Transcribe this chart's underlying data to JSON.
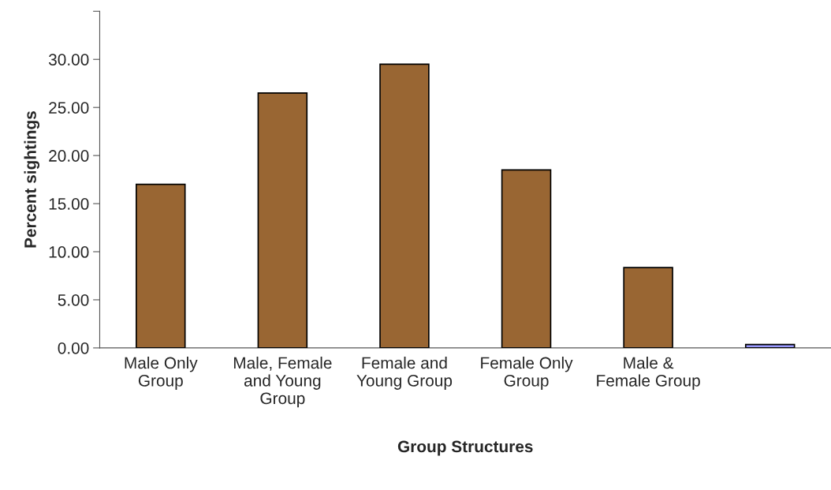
{
  "chart_data": {
    "type": "bar",
    "xlabel": "Group Structures",
    "ylabel": "Percent sightings",
    "categories": [
      "Male Only\nGroup",
      "Male, Female\nand Young\nGroup",
      "Female and\nYoung Group",
      "Female Only\nGroup",
      "Male &\nFemale Group",
      null
    ],
    "values": [
      17.0,
      26.5,
      29.5,
      18.5,
      8.35,
      0.35
    ],
    "colors": [
      "#996633",
      "#996633",
      "#996633",
      "#996633",
      "#996633",
      "#9999ff"
    ],
    "ylim": [
      0,
      35
    ],
    "yticks": [
      {
        "value": 0,
        "label": "0.00"
      },
      {
        "value": 5,
        "label": "5.00"
      },
      {
        "value": 10,
        "label": "10.00"
      },
      {
        "value": 15,
        "label": "15.00"
      },
      {
        "value": 20,
        "label": "20.00"
      },
      {
        "value": 25,
        "label": "25.00"
      },
      {
        "value": 30,
        "label": "30.00"
      },
      {
        "value": 35,
        "label": null
      }
    ],
    "grid": false
  }
}
